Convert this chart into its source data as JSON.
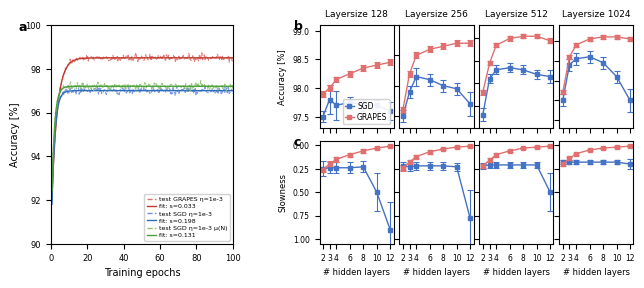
{
  "panel_a": {
    "xlabel": "Training epochs",
    "ylabel": "Accuracy [%]",
    "xlim": [
      0,
      100
    ],
    "ylim": [
      90,
      100
    ],
    "yticks": [
      90,
      92,
      94,
      96,
      98,
      100
    ],
    "xticks": [
      0,
      20,
      40,
      60,
      80,
      100
    ],
    "grapes_test_color": "#e07070",
    "grapes_fit_color": "#c0392b",
    "sgd_test_color": "#7090e0",
    "sgd_fit_color": "#2e6fba",
    "sgdmu_test_color": "#90c070",
    "sgdmu_fit_color": "#4aa040",
    "legend_labels": [
      "test GRAPES η=1e-3",
      "fit: s=0.033",
      "test SGD η=1e-3",
      "fit: s=0.198",
      "test SGD η=1e-3 μ(N)",
      "fit: s=0.131"
    ]
  },
  "panel_bc": {
    "layersizes": [
      128,
      256,
      512,
      1024
    ],
    "hidden_layers": [
      2,
      3,
      4,
      6,
      8,
      10,
      12
    ],
    "sgd_color": "#4472c4",
    "grapes_color": "#e07070",
    "b_ylabel": "Accuracy [%]",
    "c_ylabel": "Slowness",
    "xlabel": "# hidden layers",
    "accuracy_sgd": [
      [
        97.5,
        97.8,
        97.7,
        97.75,
        97.7,
        97.7,
        97.6
      ],
      [
        97.5,
        97.9,
        98.15,
        98.1,
        98.0,
        97.95,
        97.7
      ],
      [
        97.3,
        98.1,
        98.3,
        98.35,
        98.3,
        98.2,
        98.15
      ],
      [
        97.5,
        98.4,
        98.55,
        98.6,
        98.45,
        98.1,
        97.5
      ]
    ],
    "accuracy_sgd_err": [
      [
        0.1,
        0.25,
        0.25,
        0.1,
        0.1,
        0.1,
        0.15
      ],
      [
        0.1,
        0.1,
        0.15,
        0.1,
        0.1,
        0.1,
        0.2
      ],
      [
        0.15,
        0.1,
        0.1,
        0.1,
        0.1,
        0.1,
        0.15
      ],
      [
        0.15,
        0.15,
        0.15,
        0.15,
        0.15,
        0.15,
        0.3
      ]
    ],
    "accuracy_grapes": [
      [
        97.9,
        98.0,
        98.15,
        98.25,
        98.35,
        98.4,
        98.45
      ],
      [
        97.6,
        98.2,
        98.5,
        98.6,
        98.65,
        98.7,
        98.7
      ],
      [
        97.8,
        98.45,
        98.85,
        99.0,
        99.05,
        99.05,
        98.95
      ],
      [
        97.7,
        98.6,
        98.9,
        99.05,
        99.1,
        99.1,
        99.05
      ]
    ],
    "accuracy_grapes_err": [
      [
        0.05,
        0.05,
        0.05,
        0.05,
        0.05,
        0.05,
        0.05
      ],
      [
        0.05,
        0.05,
        0.05,
        0.05,
        0.05,
        0.05,
        0.05
      ],
      [
        0.05,
        0.05,
        0.05,
        0.05,
        0.05,
        0.05,
        0.05
      ],
      [
        0.05,
        0.05,
        0.05,
        0.05,
        0.05,
        0.05,
        0.05
      ]
    ],
    "slowness_sgd": [
      [
        0.25,
        0.24,
        0.24,
        0.24,
        0.23,
        0.5,
        0.9
      ],
      [
        0.22,
        0.23,
        0.22,
        0.22,
        0.22,
        0.23,
        0.78
      ],
      [
        0.22,
        0.21,
        0.21,
        0.21,
        0.21,
        0.21,
        0.5
      ],
      [
        0.18,
        0.18,
        0.18,
        0.18,
        0.18,
        0.18,
        0.2
      ]
    ],
    "slowness_sgd_err": [
      [
        0.08,
        0.06,
        0.06,
        0.06,
        0.06,
        0.2,
        0.3
      ],
      [
        0.04,
        0.04,
        0.04,
        0.04,
        0.04,
        0.04,
        0.3
      ],
      [
        0.03,
        0.03,
        0.03,
        0.03,
        0.03,
        0.03,
        0.2
      ],
      [
        0.02,
        0.02,
        0.02,
        0.02,
        0.02,
        0.02,
        0.05
      ]
    ],
    "slowness_grapes": [
      [
        0.26,
        0.2,
        0.15,
        0.1,
        0.06,
        0.03,
        0.01
      ],
      [
        0.24,
        0.18,
        0.12,
        0.07,
        0.04,
        0.02,
        0.01
      ],
      [
        0.22,
        0.16,
        0.1,
        0.06,
        0.03,
        0.02,
        0.01
      ],
      [
        0.2,
        0.14,
        0.09,
        0.05,
        0.03,
        0.02,
        0.01
      ]
    ],
    "slowness_grapes_err": [
      [
        0.03,
        0.03,
        0.03,
        0.02,
        0.02,
        0.01,
        0.01
      ],
      [
        0.03,
        0.02,
        0.02,
        0.02,
        0.01,
        0.01,
        0.01
      ],
      [
        0.02,
        0.02,
        0.02,
        0.01,
        0.01,
        0.01,
        0.01
      ],
      [
        0.02,
        0.02,
        0.01,
        0.01,
        0.01,
        0.01,
        0.01
      ]
    ]
  }
}
